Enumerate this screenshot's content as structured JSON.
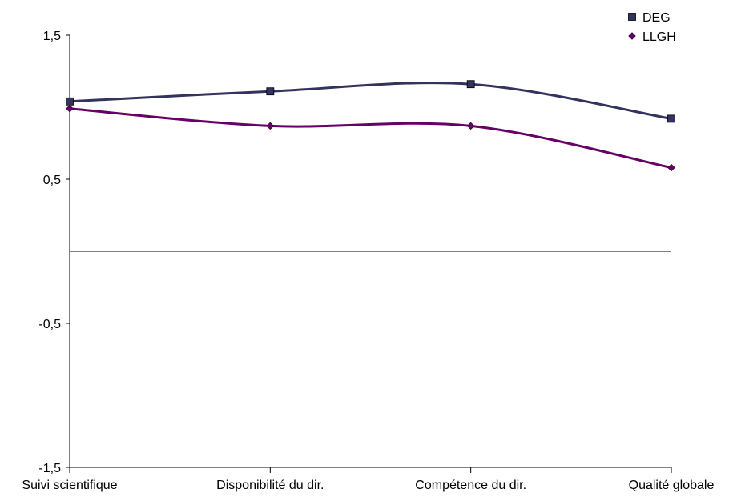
{
  "chart_data": {
    "type": "line",
    "title": "",
    "xlabel": "",
    "ylabel": "",
    "categories": [
      "Suivi scientifique",
      "Disponibilité du dir.",
      "Compétence du dir.",
      "Qualité globale"
    ],
    "y_ticks": [
      "1,5",
      "0,5",
      "-0,5",
      "-1,5"
    ],
    "y_tick_values": [
      1.5,
      0.5,
      -0.5,
      -1.5
    ],
    "ylim": [
      -1.5,
      1.5
    ],
    "grid": false,
    "legend_position": "top-right",
    "series": [
      {
        "name": "DEG",
        "values": [
          1.04,
          1.11,
          1.16,
          0.92
        ],
        "color": "#33335f",
        "marker": "square"
      },
      {
        "name": "LLGH",
        "values": [
          0.99,
          0.87,
          0.87,
          0.58
        ],
        "color": "#660066",
        "marker": "diamond"
      }
    ]
  }
}
